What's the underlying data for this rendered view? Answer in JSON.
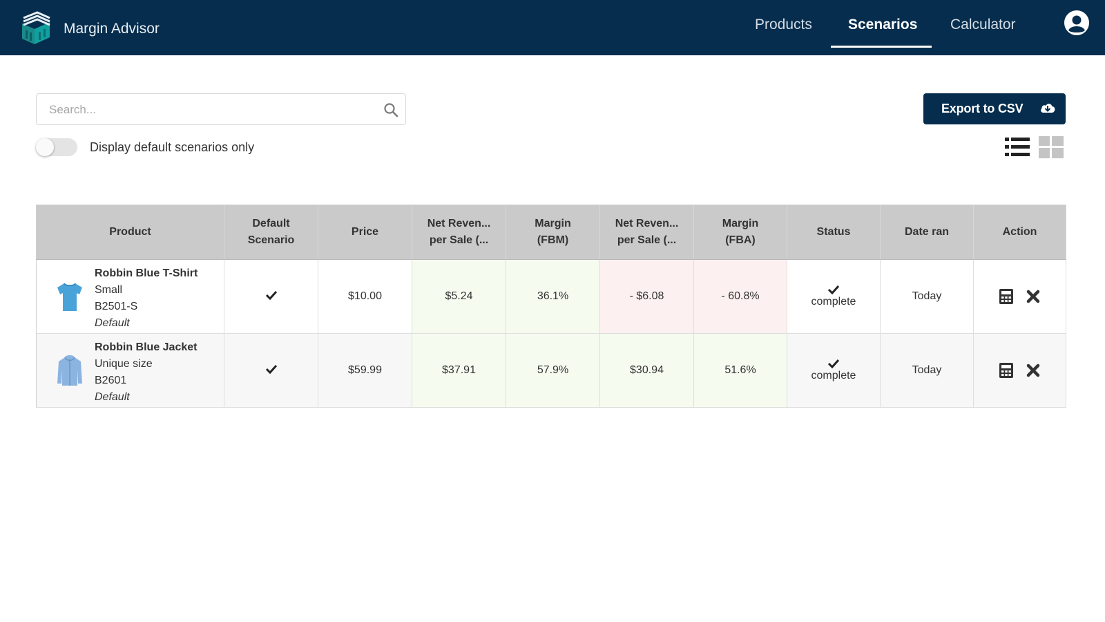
{
  "app": {
    "title": "Margin Advisor"
  },
  "nav": {
    "items": [
      "Products",
      "Scenarios",
      "Calculator"
    ],
    "active": "Scenarios"
  },
  "search": {
    "placeholder": "Search...",
    "value": ""
  },
  "toggle": {
    "label": "Display default scenarios only",
    "on": false
  },
  "export": {
    "label": "Export to CSV"
  },
  "icons": {
    "logo": "box-stack-logo-icon",
    "user": "user-circle-icon",
    "search": "search-icon",
    "export": "cloud-download-icon",
    "view_list": "list-view-icon",
    "view_grid": "grid-view-icon",
    "calculator": "calculator-icon",
    "delete": "close-icon",
    "check": "check-icon"
  },
  "colors": {
    "topbar": "#062d4d",
    "positive_bg": "#f6fbf0",
    "negative_bg": "#fcf0f0",
    "positive_text": "#3d7a3a",
    "negative_text": "#b34a4a"
  },
  "table": {
    "headers": [
      [
        "Product"
      ],
      [
        "Default",
        "Scenario"
      ],
      [
        "Price"
      ],
      [
        "Net Reven...",
        "per Sale (..."
      ],
      [
        "Margin",
        "(FBM)"
      ],
      [
        "Net Reven...",
        "per Sale (..."
      ],
      [
        "Margin",
        "(FBA)"
      ],
      [
        "Status"
      ],
      [
        "Date ran"
      ],
      [
        "Action"
      ]
    ],
    "rows": [
      {
        "name": "Robbin Blue T-Shirt",
        "size": "Small",
        "sku": "B2501-S",
        "scenario": "Default",
        "default": true,
        "price": "$10.00",
        "net_fbm": "$5.24",
        "margin_fbm": "36.1%",
        "net_fba": "- $6.08",
        "margin_fba": "- 60.8%",
        "status": "complete",
        "date": "Today",
        "thumb": "tshirt-thumbnail-icon"
      },
      {
        "name": "Robbin Blue Jacket",
        "size": "Unique size",
        "sku": "B2601",
        "scenario": "Default",
        "default": true,
        "price": "$59.99",
        "net_fbm": "$37.91",
        "margin_fbm": "57.9%",
        "net_fba": "$30.94",
        "margin_fba": "51.6%",
        "status": "complete",
        "date": "Today",
        "thumb": "jacket-thumbnail-icon"
      }
    ]
  }
}
